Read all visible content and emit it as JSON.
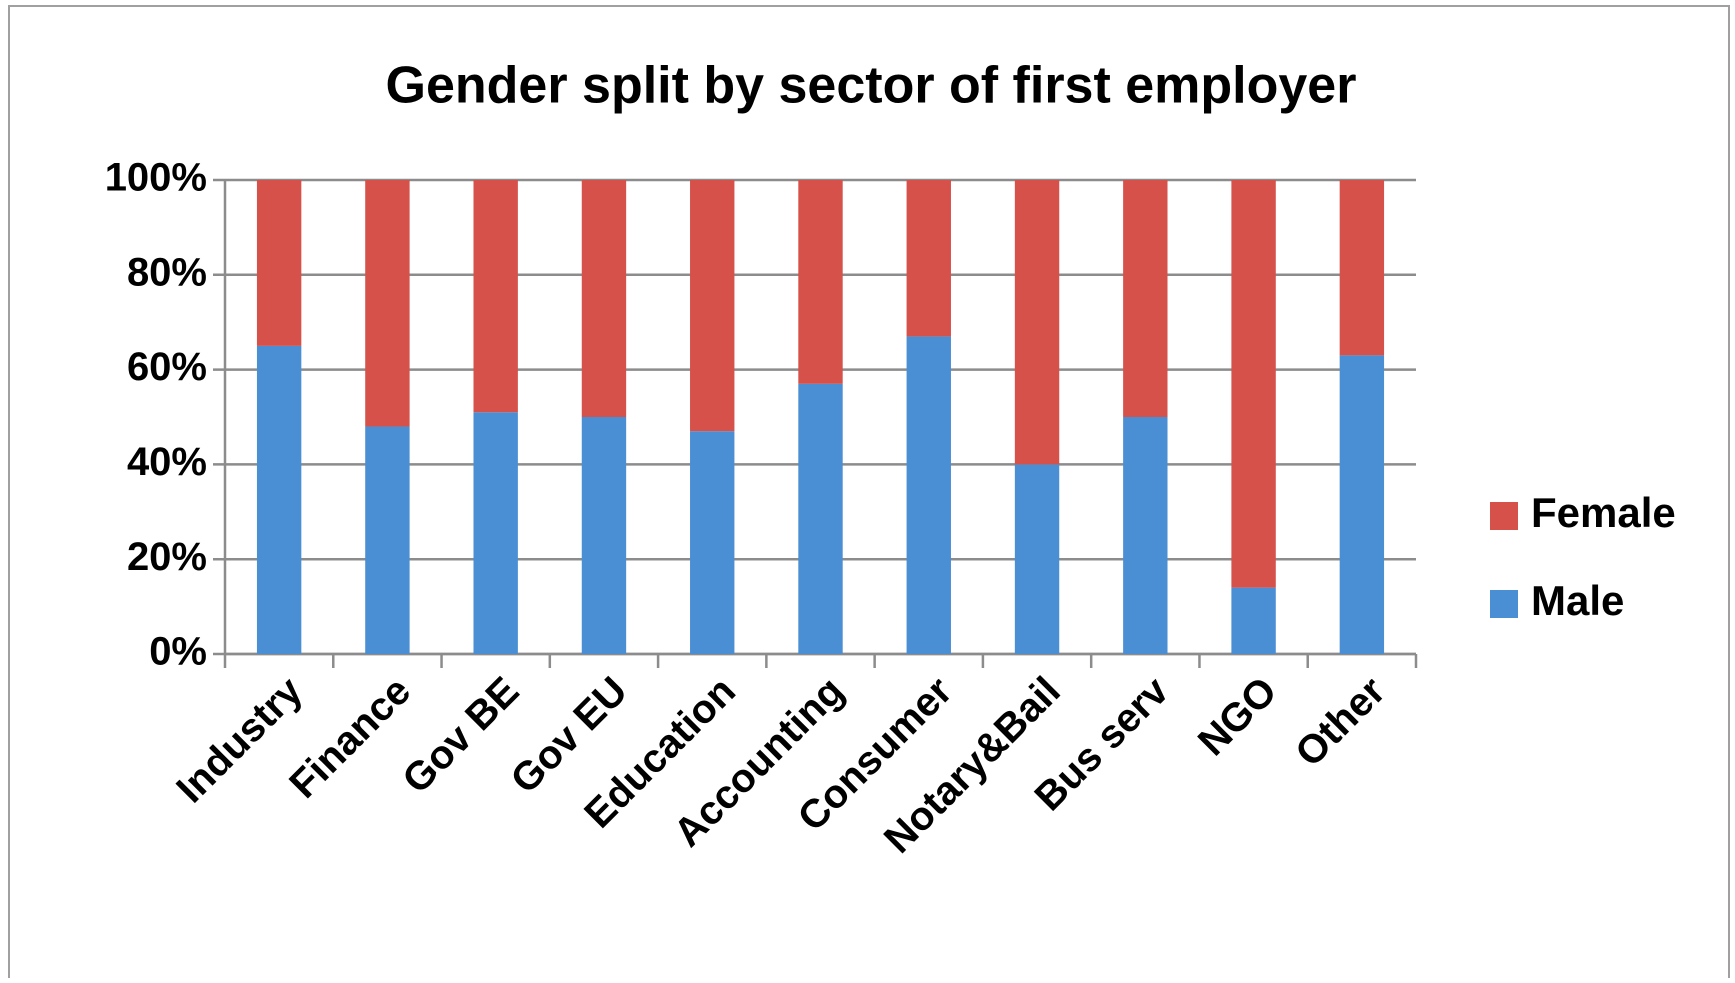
{
  "chart_data": {
    "type": "stacked_bar",
    "title": "Gender split by sector of  first employer",
    "categories": [
      "Industry",
      "Finance",
      "Gov BE",
      "Gov EU",
      "Education",
      "Accounting",
      "Consumer",
      "Notary&Bail",
      "Bus serv",
      "NGO",
      "Other"
    ],
    "series": [
      {
        "name": "Male",
        "color": "#4a8fd4",
        "values": [
          65,
          48,
          51,
          50,
          47,
          57,
          67,
          40,
          50,
          14,
          63
        ]
      },
      {
        "name": "Female",
        "color": "#d6514a",
        "values": [
          35,
          52,
          49,
          50,
          53,
          43,
          33,
          60,
          50,
          86,
          37
        ]
      }
    ],
    "ylim": [
      0,
      100
    ],
    "yticks": [
      {
        "value": 0,
        "label": "0%"
      },
      {
        "value": 20,
        "label": "20%"
      },
      {
        "value": 40,
        "label": "40%"
      },
      {
        "value": 60,
        "label": "60%"
      },
      {
        "value": 80,
        "label": "80%"
      },
      {
        "value": 100,
        "label": "100%"
      }
    ],
    "grid": true,
    "legend": "right"
  }
}
